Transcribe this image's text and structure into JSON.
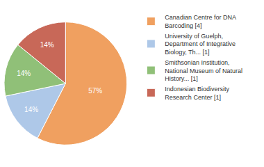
{
  "chart_data": {
    "type": "pie",
    "categories": [
      "Canadian Centre for DNA\nBarcoding [4]",
      "University of Guelph,\nDepartment of Integrative\nBiology, Th... [1]",
      "Smithsonian Institution,\nNational Museum of Natural\nHistory... [1]",
      "Indonesian Biodiversity\nResearch Center [1]"
    ],
    "values": [
      57,
      14,
      14,
      14
    ],
    "value_labels": [
      "57%",
      "14%",
      "14%",
      "14%"
    ],
    "data_labels": true,
    "colors": [
      "#f0a060",
      "#aec8e8",
      "#90c078",
      "#c86858"
    ],
    "legend": "right"
  }
}
